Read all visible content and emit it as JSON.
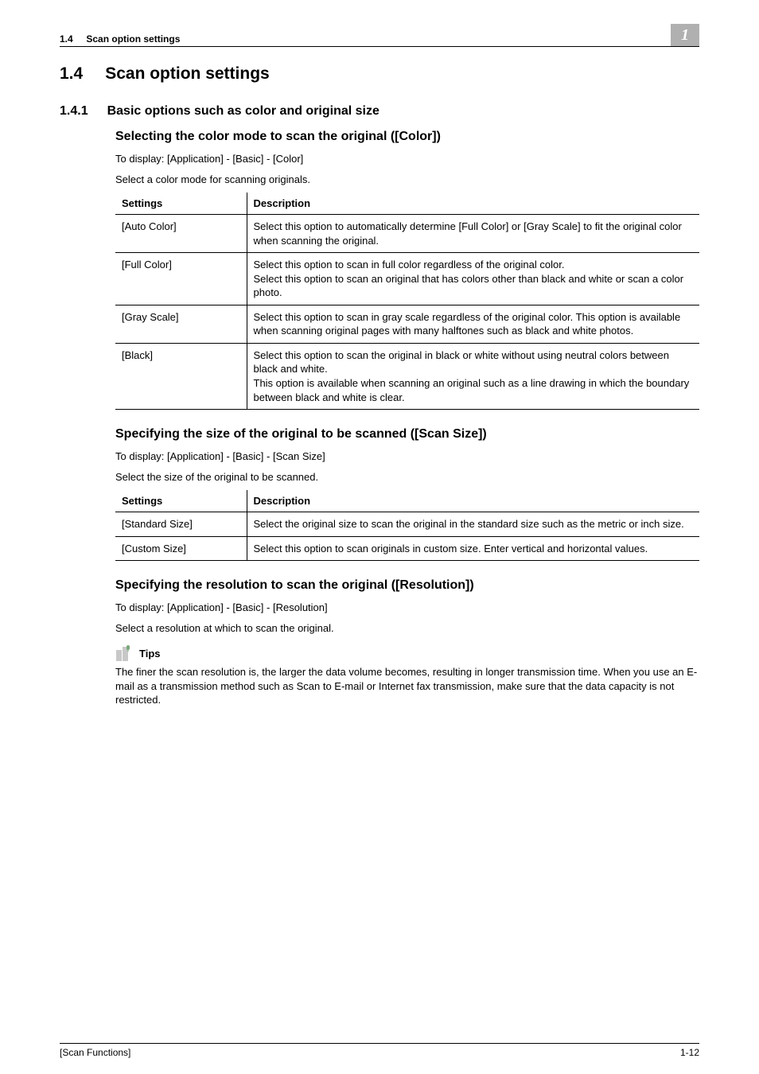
{
  "header": {
    "section_num": "1.4",
    "section_title": "Scan option settings",
    "chapter_badge": "1"
  },
  "h1": {
    "num": "1.4",
    "title": "Scan option settings"
  },
  "h2": {
    "num": "1.4.1",
    "title": "Basic options such as color and original size"
  },
  "sec_color": {
    "heading": "Selecting the color mode to scan the original ([Color])",
    "path": "To display: [Application] - [Basic] - [Color]",
    "intro": "Select a color mode for scanning originals.",
    "col_settings": "Settings",
    "col_desc": "Description",
    "rows": [
      {
        "s": "[Auto Color]",
        "d": "Select this option to automatically determine [Full Color] or [Gray Scale] to fit the original color when scanning the original."
      },
      {
        "s": "[Full Color]",
        "d": "Select this option to scan in full color regardless of the original color.\nSelect this option to scan an original that has colors other than black and white or scan a color photo."
      },
      {
        "s": "[Gray Scale]",
        "d": "Select this option to scan in gray scale regardless of the original color. This option is available when scanning original pages with many halftones such as black and white photos."
      },
      {
        "s": "[Black]",
        "d": "Select this option to scan the original in black or white without using neutral colors between black and white.\nThis option is available when scanning an original such as a line drawing in which the boundary between black and white is clear."
      }
    ]
  },
  "sec_size": {
    "heading": "Specifying the size of the original to be scanned ([Scan Size])",
    "path": "To display: [Application] - [Basic] - [Scan Size]",
    "intro": "Select the size of the original to be scanned.",
    "col_settings": "Settings",
    "col_desc": "Description",
    "rows": [
      {
        "s": "[Standard Size]",
        "d": "Select the original size to scan the original in the standard size such as the metric or inch size."
      },
      {
        "s": "[Custom Size]",
        "d": "Select this option to scan originals in custom size. Enter vertical and horizontal values."
      }
    ]
  },
  "sec_res": {
    "heading": "Specifying the resolution to scan the original ([Resolution])",
    "path": "To display: [Application] - [Basic] - [Resolution]",
    "intro": "Select a resolution at which to scan the original.",
    "tips_label": "Tips",
    "tips_body": "The finer the scan resolution is, the larger the data volume becomes, resulting in longer transmission time. When you use an E-mail as a transmission method such as Scan to E-mail or Internet fax transmission, make sure that the data capacity is not restricted."
  },
  "footer": {
    "left": "[Scan Functions]",
    "right": "1-12"
  }
}
